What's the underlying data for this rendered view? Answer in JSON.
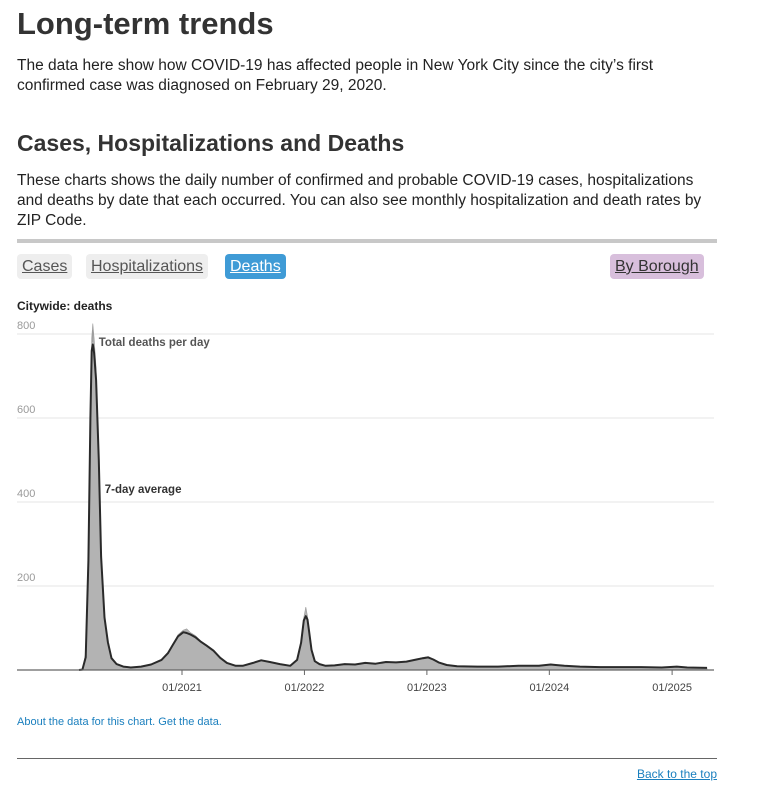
{
  "header": {
    "title": "Long-term trends",
    "intro": "The data here show how COVID-19 has affected people in New York City since the city’s first confirmed case was diagnosed on February 29, 2020."
  },
  "section": {
    "title": "Cases, Hospitalizations and Deaths",
    "description": "These charts shows the daily number of confirmed and probable COVID-19 cases, hospitalizations and deaths by date that each occurred. You can also see monthly hospitalization and death rates by ZIP Code."
  },
  "tabs": {
    "cases": "Cases",
    "hospitalizations": "Hospitalizations",
    "deaths": "Deaths",
    "by_borough": "By Borough",
    "active": "deaths"
  },
  "colors": {
    "active_tab": "#3f9bd6",
    "borough_tab": "#d8bfdc",
    "bar_fill": "#b3b3b3",
    "avg_line": "#2a2a2a",
    "link": "#1a7fbe"
  },
  "chart_data": {
    "type": "area",
    "title": "Citywide: deaths",
    "xlabel": "",
    "ylabel": "",
    "ylim": [
      0,
      800
    ],
    "yticks": [
      800,
      600,
      400,
      200
    ],
    "x_ticks": [
      "01/2021",
      "01/2022",
      "01/2023",
      "01/2024",
      "01/2025"
    ],
    "x_range": [
      "2020-02-29",
      "2025-04-15"
    ],
    "grid": true,
    "annotations": [
      "Total deaths per day",
      "7-day average"
    ],
    "series": [
      {
        "name": "Total deaths per day",
        "style": "bars",
        "x": [
          "2020-02-29",
          "2020-03-10",
          "2020-03-20",
          "2020-03-28",
          "2020-04-03",
          "2020-04-07",
          "2020-04-10",
          "2020-04-14",
          "2020-04-20",
          "2020-04-28",
          "2020-05-05",
          "2020-05-15",
          "2020-05-25",
          "2020-06-05",
          "2020-06-20",
          "2020-07-10",
          "2020-08-01",
          "2020-09-01",
          "2020-10-01",
          "2020-11-01",
          "2020-11-20",
          "2020-12-05",
          "2020-12-20",
          "2021-01-05",
          "2021-01-15",
          "2021-01-25",
          "2021-02-10",
          "2021-02-25",
          "2021-03-15",
          "2021-04-05",
          "2021-04-25",
          "2021-05-15",
          "2021-06-10",
          "2021-07-01",
          "2021-08-01",
          "2021-08-25",
          "2021-09-20",
          "2021-10-20",
          "2021-11-20",
          "2021-12-10",
          "2021-12-22",
          "2021-12-30",
          "2022-01-05",
          "2022-01-10",
          "2022-01-15",
          "2022-01-22",
          "2022-02-01",
          "2022-02-15",
          "2022-03-05",
          "2022-04-01",
          "2022-05-01",
          "2022-06-01",
          "2022-07-01",
          "2022-08-01",
          "2022-09-01",
          "2022-10-01",
          "2022-11-01",
          "2022-12-01",
          "2022-12-20",
          "2023-01-05",
          "2023-01-20",
          "2023-02-05",
          "2023-03-01",
          "2023-04-01",
          "2023-06-01",
          "2023-08-01",
          "2023-10-01",
          "2023-12-01",
          "2024-01-05",
          "2024-01-20",
          "2024-02-15",
          "2024-04-01",
          "2024-06-01",
          "2024-08-01",
          "2024-10-01",
          "2024-12-01",
          "2025-01-15",
          "2025-02-15",
          "2025-04-15"
        ],
        "values": [
          0,
          2,
          40,
          300,
          640,
          790,
          825,
          790,
          720,
          520,
          280,
          130,
          70,
          30,
          15,
          8,
          6,
          8,
          14,
          25,
          42,
          62,
          84,
          95,
          98,
          90,
          82,
          70,
          60,
          48,
          30,
          18,
          10,
          10,
          18,
          24,
          20,
          14,
          10,
          25,
          70,
          125,
          150,
          128,
          95,
          50,
          22,
          14,
          10,
          11,
          15,
          13,
          18,
          15,
          20,
          18,
          20,
          26,
          30,
          32,
          26,
          18,
          12,
          9,
          8,
          8,
          10,
          10,
          14,
          12,
          10,
          8,
          7,
          7,
          7,
          6,
          8,
          6,
          5
        ]
      },
      {
        "name": "7-day average",
        "style": "line",
        "x": [
          "2020-02-29",
          "2020-03-10",
          "2020-03-20",
          "2020-03-28",
          "2020-04-03",
          "2020-04-07",
          "2020-04-10",
          "2020-04-14",
          "2020-04-20",
          "2020-04-28",
          "2020-05-05",
          "2020-05-15",
          "2020-05-25",
          "2020-06-05",
          "2020-06-20",
          "2020-07-10",
          "2020-08-01",
          "2020-09-01",
          "2020-10-01",
          "2020-11-01",
          "2020-11-20",
          "2020-12-05",
          "2020-12-20",
          "2021-01-05",
          "2021-01-15",
          "2021-01-25",
          "2021-02-10",
          "2021-02-25",
          "2021-03-15",
          "2021-04-05",
          "2021-04-25",
          "2021-05-15",
          "2021-06-10",
          "2021-07-01",
          "2021-08-01",
          "2021-08-25",
          "2021-09-20",
          "2021-10-20",
          "2021-11-20",
          "2021-12-10",
          "2021-12-22",
          "2021-12-30",
          "2022-01-05",
          "2022-01-10",
          "2022-01-15",
          "2022-01-22",
          "2022-02-01",
          "2022-02-15",
          "2022-03-05",
          "2022-04-01",
          "2022-05-01",
          "2022-06-01",
          "2022-07-01",
          "2022-08-01",
          "2022-09-01",
          "2022-10-01",
          "2022-11-01",
          "2022-12-01",
          "2022-12-20",
          "2023-01-05",
          "2023-01-20",
          "2023-02-05",
          "2023-03-01",
          "2023-04-01",
          "2023-06-01",
          "2023-08-01",
          "2023-10-01",
          "2023-12-01",
          "2024-01-05",
          "2024-01-20",
          "2024-02-15",
          "2024-04-01",
          "2024-06-01",
          "2024-08-01",
          "2024-10-01",
          "2024-12-01",
          "2025-01-15",
          "2025-02-15",
          "2025-04-15"
        ],
        "values": [
          0,
          1,
          30,
          260,
          600,
          760,
          775,
          755,
          690,
          500,
          270,
          125,
          66,
          28,
          14,
          8,
          6,
          8,
          13,
          24,
          40,
          60,
          80,
          90,
          88,
          85,
          78,
          68,
          58,
          46,
          29,
          17,
          10,
          10,
          17,
          23,
          19,
          14,
          10,
          24,
          65,
          118,
          128,
          120,
          92,
          48,
          21,
          14,
          10,
          11,
          14,
          13,
          17,
          15,
          19,
          18,
          20,
          25,
          28,
          30,
          25,
          18,
          12,
          9,
          8,
          8,
          10,
          10,
          13,
          12,
          10,
          8,
          7,
          7,
          7,
          6,
          8,
          6,
          5
        ]
      }
    ]
  },
  "footer": {
    "about_link": "About the data for this chart.",
    "get_data_link": "Get the data.",
    "back_to_top": "Back to the top"
  }
}
